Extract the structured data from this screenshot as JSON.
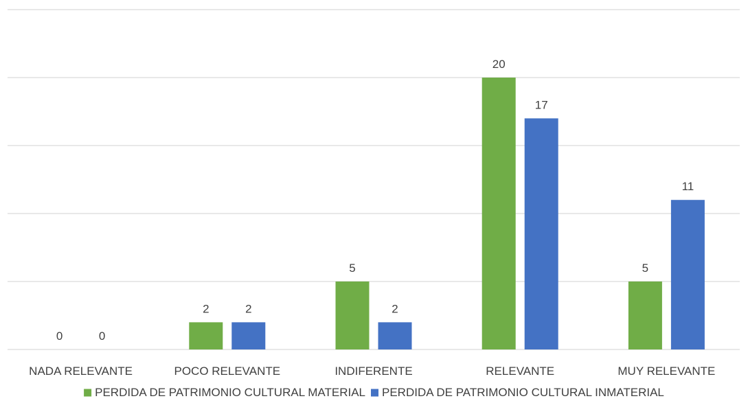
{
  "chart_data": {
    "type": "bar",
    "categories": [
      "NADA RELEVANTE",
      "POCO RELEVANTE",
      "INDIFERENTE",
      "RELEVANTE",
      "MUY RELEVANTE"
    ],
    "series": [
      {
        "name": "PERDIDA DE PATRIMONIO CULTURAL MATERIAL",
        "color": "#70ad47",
        "values": [
          0,
          2,
          5,
          20,
          5
        ]
      },
      {
        "name": "PERDIDA DE PATRIMONIO CULTURAL INMATERIAL",
        "color": "#4472c4",
        "values": [
          0,
          2,
          2,
          17,
          11
        ]
      }
    ],
    "ylim": [
      0,
      25
    ],
    "grid": true,
    "legend": "bottom",
    "y_tick_labels_shown": false
  }
}
